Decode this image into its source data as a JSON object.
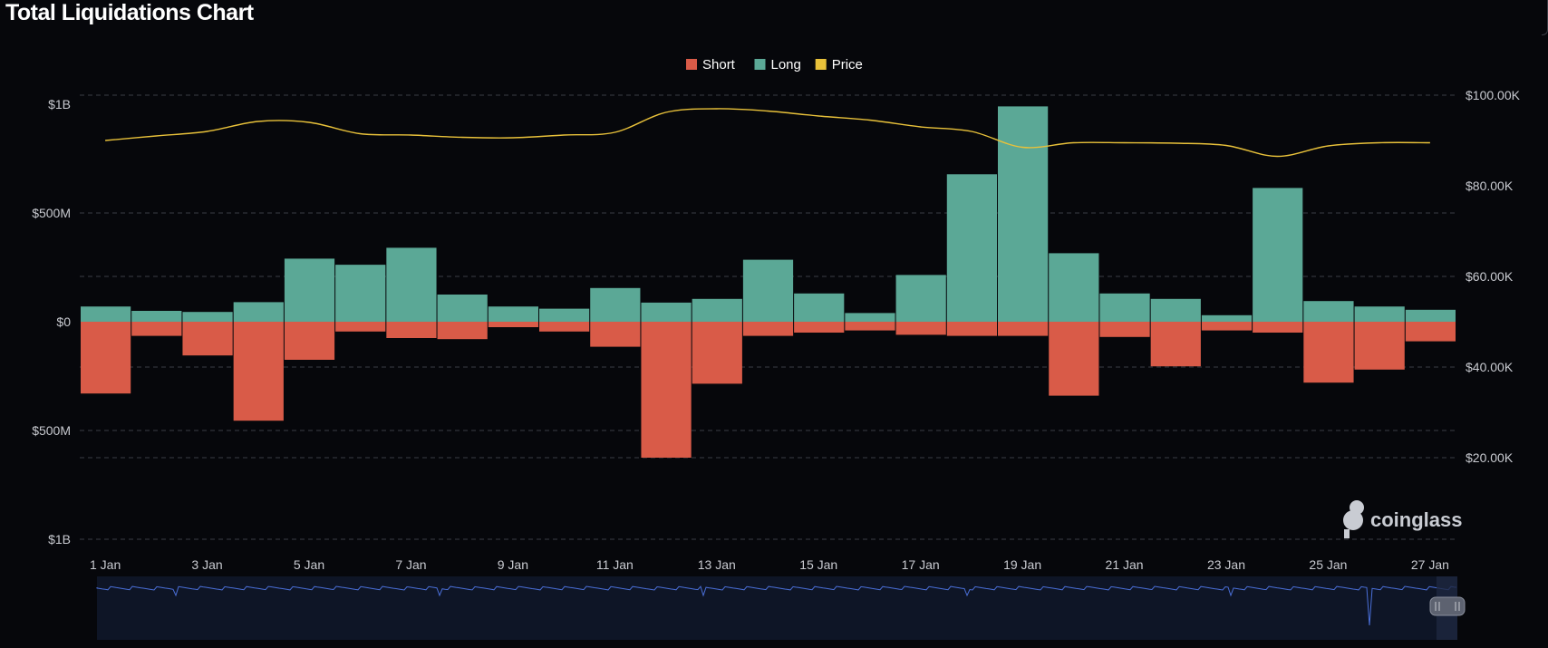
{
  "page": {
    "title": "Total Liquidations Chart"
  },
  "colors": {
    "short": "#d95b48",
    "long": "#5ba896",
    "price": "#e8c13a",
    "grid": "#3a3d45",
    "background": "#06070b",
    "navigator_fill": "#0e1526",
    "navigator_line": "#4a6fd8"
  },
  "watermark": {
    "text": "coinglass",
    "icon": "coinglass-logo-icon"
  },
  "chart_data": {
    "type": "bar",
    "title": "Total Liquidations Chart",
    "legend": {
      "position": "top-center",
      "items": [
        {
          "key": "short",
          "label": "Short"
        },
        {
          "key": "long",
          "label": "Long"
        },
        {
          "key": "price",
          "label": "Price"
        }
      ]
    },
    "categories": [
      "1 Jan",
      "2 Jan",
      "3 Jan",
      "4 Jan",
      "5 Jan",
      "6 Jan",
      "7 Jan",
      "8 Jan",
      "9 Jan",
      "10 Jan",
      "11 Jan",
      "12 Jan",
      "13 Jan",
      "14 Jan",
      "15 Jan",
      "16 Jan",
      "17 Jan",
      "18 Jan",
      "19 Jan",
      "20 Jan",
      "21 Jan",
      "22 Jan",
      "23 Jan",
      "24 Jan",
      "25 Jan",
      "26 Jan",
      "27 Jan"
    ],
    "x_tick_labels": [
      "1 Jan",
      "3 Jan",
      "5 Jan",
      "7 Jan",
      "9 Jan",
      "11 Jan",
      "13 Jan",
      "15 Jan",
      "17 Jan",
      "19 Jan",
      "21 Jan",
      "23 Jan",
      "25 Jan",
      "27 Jan"
    ],
    "series": [
      {
        "name": "Long",
        "values": [
          70,
          50,
          45,
          90,
          290,
          262,
          340,
          125,
          70,
          60,
          155,
          88,
          105,
          285,
          130,
          40,
          215,
          678,
          990,
          315,
          130,
          105,
          30,
          615,
          95,
          70,
          55
        ]
      },
      {
        "name": "Short",
        "values": [
          -330,
          -65,
          -155,
          -455,
          -175,
          -45,
          -75,
          -80,
          -25,
          -45,
          -115,
          -625,
          -285,
          -65,
          -50,
          -40,
          -60,
          -65,
          -65,
          -340,
          -70,
          -205,
          -40,
          -50,
          -280,
          -220,
          -90
        ]
      },
      {
        "name": "Price",
        "axis": "right",
        "values": [
          90000,
          91000,
          92000,
          94200,
          94000,
          91500,
          91200,
          90700,
          90600,
          91200,
          91800,
          96200,
          97000,
          96500,
          95400,
          94500,
          93000,
          92000,
          88500,
          89500,
          89500,
          89400,
          88900,
          86500,
          88800,
          89500,
          89500
        ]
      }
    ],
    "y_left": {
      "unit": "USD",
      "ylim": [
        -1000,
        1000
      ],
      "ticks": [
        {
          "v": 1000,
          "label": "$1B"
        },
        {
          "v": 500,
          "label": "$500M"
        },
        {
          "v": 0,
          "label": "$0"
        },
        {
          "v": -500,
          "label": "$500M"
        },
        {
          "v": -1000,
          "label": "$1B"
        }
      ]
    },
    "y_right": {
      "ticks": [
        {
          "v": 100000,
          "label": "$100.00K"
        },
        {
          "v": 80000,
          "label": "$80.00K"
        },
        {
          "v": 60000,
          "label": "$60.00K"
        },
        {
          "v": 40000,
          "label": "$40.00K"
        },
        {
          "v": 20000,
          "label": "$20.00K"
        }
      ]
    },
    "grid": true
  }
}
